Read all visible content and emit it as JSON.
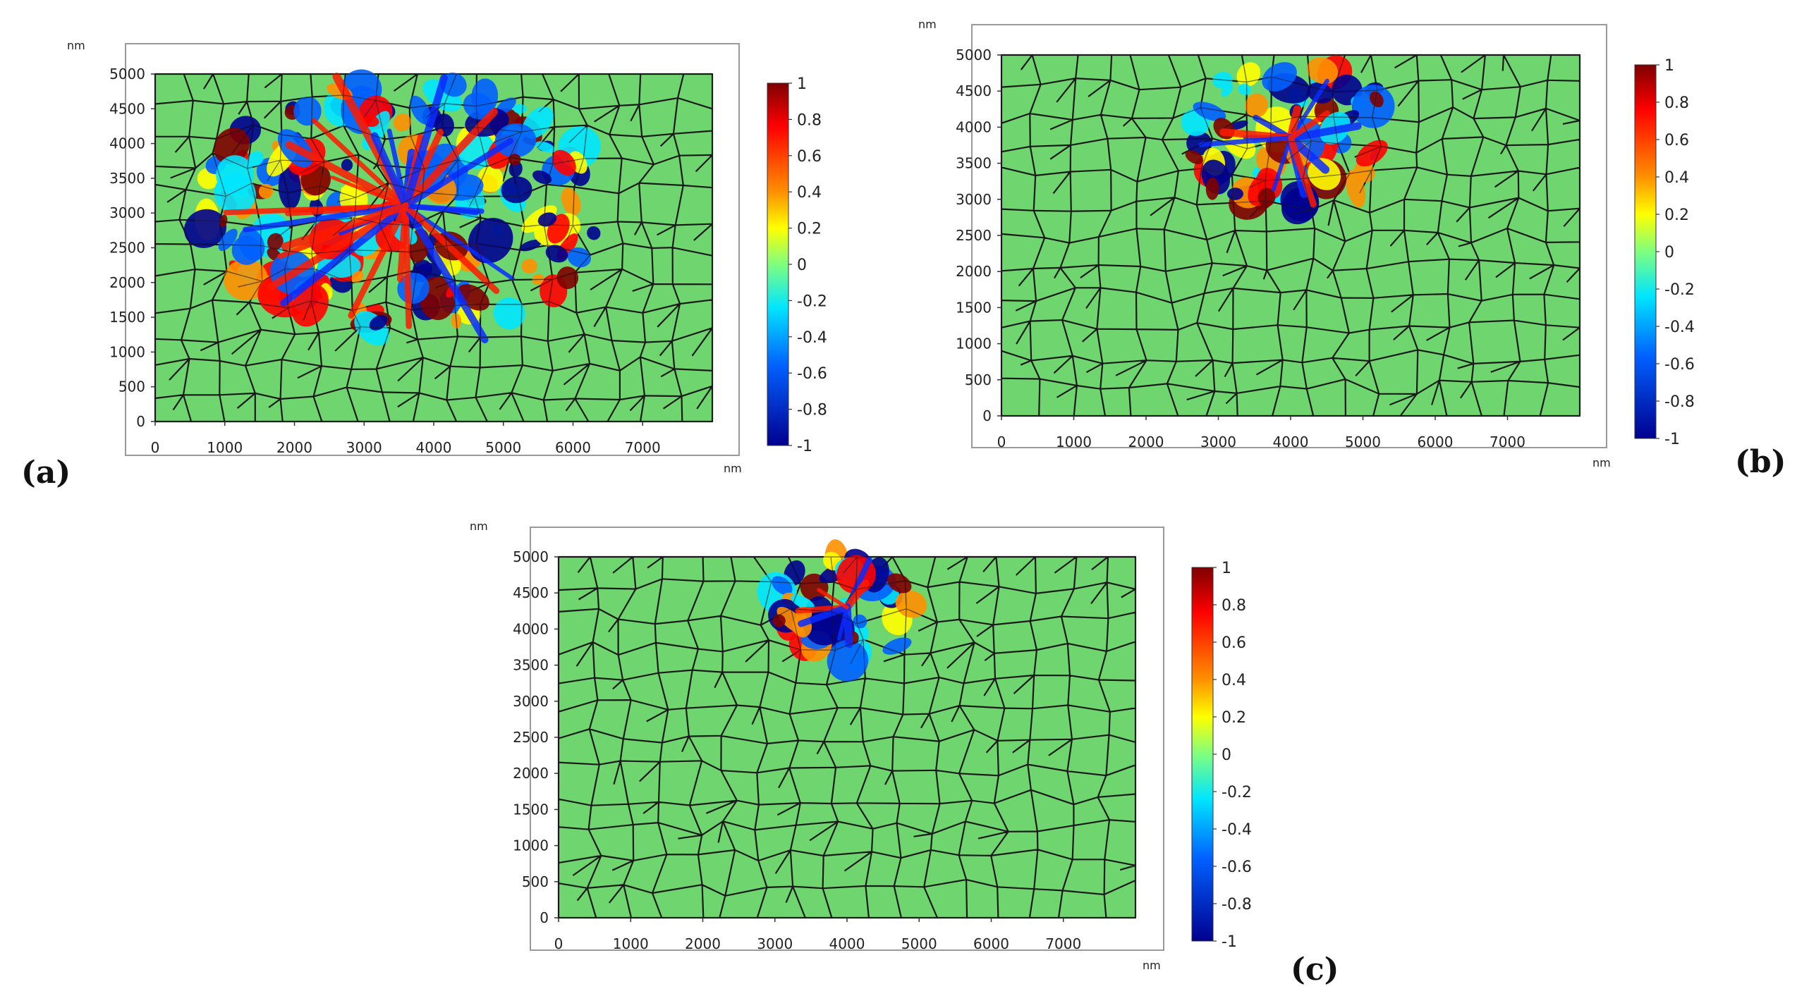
{
  "figure": {
    "panels": [
      {
        "id": "a",
        "label": "(a)",
        "x_unit": "nm",
        "y_unit": "nm",
        "x_ticks": [
          "0",
          "1000",
          "2000",
          "3000",
          "4000",
          "5000",
          "6000",
          "7000"
        ],
        "y_ticks": [
          "5000",
          "4500",
          "4000",
          "3500",
          "3000",
          "2500",
          "2000",
          "1500",
          "1000",
          "500",
          "0"
        ],
        "colorbar_ticks": [
          "1",
          "0.8",
          "0.6",
          "0.4",
          "0.2",
          "0",
          "-0.2",
          "-0.4",
          "-0.6",
          "-0.8",
          "-1"
        ],
        "damage_extent": "large"
      },
      {
        "id": "b",
        "label": "(b)",
        "x_unit": "nm",
        "y_unit": "nm",
        "x_ticks": [
          "0",
          "1000",
          "2000",
          "3000",
          "4000",
          "5000",
          "6000",
          "7000"
        ],
        "y_ticks": [
          "5000",
          "4500",
          "4000",
          "3500",
          "3000",
          "2500",
          "2000",
          "1500",
          "1000",
          "500",
          "0"
        ],
        "colorbar_ticks": [
          "1",
          "0.8",
          "0.6",
          "0.4",
          "0.2",
          "0",
          "-0.2",
          "-0.4",
          "-0.6",
          "-0.8",
          "-1"
        ],
        "damage_extent": "medium"
      },
      {
        "id": "c",
        "label": "(c)",
        "x_unit": "nm",
        "y_unit": "nm",
        "x_ticks": [
          "0",
          "1000",
          "2000",
          "3000",
          "4000",
          "5000",
          "6000",
          "7000"
        ],
        "y_ticks": [
          "5000",
          "4500",
          "4000",
          "3500",
          "3000",
          "2500",
          "2000",
          "1500",
          "1000",
          "500",
          "0"
        ],
        "colorbar_ticks": [
          "1",
          "0.8",
          "0.6",
          "0.4",
          "0.2",
          "0",
          "-0.2",
          "-0.4",
          "-0.6",
          "-0.8",
          "-1"
        ],
        "damage_extent": "small"
      }
    ],
    "colors": {
      "grain_fill": "#6fd66f",
      "grain_boundary": "#1a1a1a",
      "colormap": [
        "#7f0000",
        "#ff0000",
        "#ff8c00",
        "#ffff00",
        "#80ff80",
        "#00e5ff",
        "#0066ff",
        "#00008f"
      ]
    }
  }
}
